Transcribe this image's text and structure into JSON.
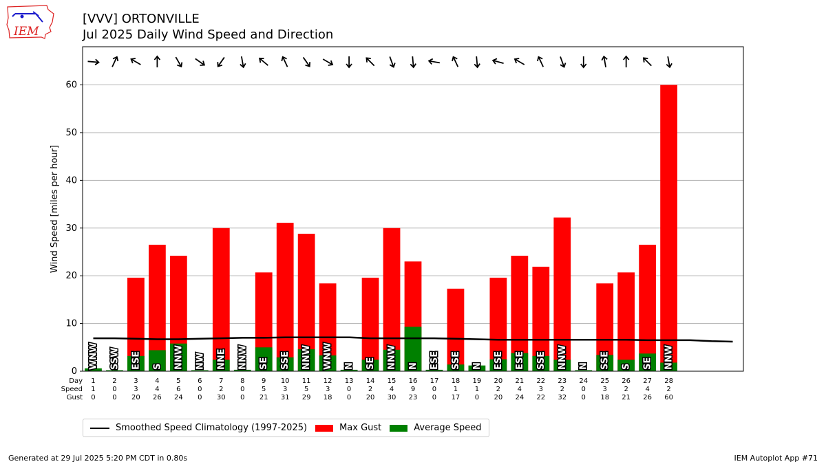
{
  "logo": {
    "text": "IEM"
  },
  "header": {
    "title": "[VVV] ORTONVILLE",
    "subtitle": "Jul 2025 Daily Wind Speed and Direction"
  },
  "colors": {
    "gust": "#ff0000",
    "speed": "#008000",
    "climo": "#000000",
    "grid": "#b0b0b0"
  },
  "chart_data": {
    "type": "bar",
    "ylabel": "Wind Speed [miles per hour]",
    "ylim": [
      0,
      68
    ],
    "xlim": [
      0.5,
      31.5
    ],
    "yticks": [
      0,
      10,
      20,
      30,
      40,
      50,
      60
    ],
    "grid": true,
    "legend_position": "bottom-left",
    "row_labels": [
      "Day",
      "Speed",
      "Gust"
    ],
    "days": [
      1,
      2,
      3,
      4,
      5,
      6,
      7,
      8,
      9,
      10,
      11,
      12,
      13,
      14,
      15,
      16,
      17,
      18,
      19,
      20,
      21,
      22,
      23,
      24,
      25,
      26,
      27,
      28
    ],
    "speed_labels": [
      1,
      0,
      3,
      4,
      6,
      0,
      2,
      0,
      5,
      3,
      5,
      3,
      0,
      2,
      4,
      9,
      0,
      1,
      1,
      2,
      4,
      3,
      2,
      0,
      3,
      2,
      4,
      2
    ],
    "gust_labels": [
      0,
      0,
      20,
      26,
      24,
      0,
      30,
      0,
      21,
      31,
      29,
      18,
      0,
      20,
      30,
      23,
      0,
      17,
      0,
      20,
      24,
      22,
      32,
      0,
      18,
      21,
      26,
      60
    ],
    "series": [
      {
        "name": "Max Gust",
        "values": [
          0,
          0,
          19.6,
          26.5,
          24.2,
          0,
          30.0,
          0,
          20.7,
          31.1,
          28.8,
          18.4,
          0,
          19.6,
          30.0,
          23.0,
          0,
          17.3,
          0,
          19.6,
          24.2,
          21.9,
          32.2,
          0,
          18.4,
          20.7,
          26.5,
          60.0
        ]
      },
      {
        "name": "Average Speed",
        "values": [
          0.6,
          0.2,
          3.2,
          4.4,
          5.8,
          0.2,
          2.4,
          0.3,
          5.0,
          2.9,
          4.6,
          3.3,
          0.3,
          2.4,
          4.5,
          9.3,
          0.3,
          1.4,
          1.2,
          2.5,
          3.8,
          3.2,
          2.4,
          0.2,
          3.4,
          2.4,
          3.7,
          1.8
        ]
      },
      {
        "name": "Smoothed Speed Climatology (1997-2025)",
        "x": [
          1,
          2,
          3,
          4,
          5,
          6,
          7,
          8,
          9,
          10,
          11,
          12,
          13,
          14,
          15,
          16,
          17,
          18,
          19,
          20,
          21,
          22,
          23,
          24,
          25,
          26,
          27,
          28,
          29,
          30,
          31
        ],
        "values": [
          6.9,
          6.9,
          6.8,
          6.7,
          6.7,
          6.8,
          6.9,
          7.0,
          7.0,
          7.1,
          7.1,
          7.1,
          7.1,
          6.9,
          6.9,
          6.9,
          6.9,
          6.8,
          6.7,
          6.6,
          6.6,
          6.6,
          6.6,
          6.6,
          6.6,
          6.6,
          6.5,
          6.5,
          6.5,
          6.3,
          6.2
        ]
      }
    ],
    "direction_labels": [
      "WNW",
      "SSW",
      "ESE",
      "S",
      "NNW",
      "NW",
      "NNE",
      "NNW",
      "SE",
      "SSE",
      "NNW",
      "WNW",
      "N",
      "SE",
      "NNW",
      "N",
      "ESE",
      "SSE",
      "N",
      "ESE",
      "ESE",
      "SSE",
      "NNW",
      "N",
      "SSE",
      "S",
      "SE",
      "NNW"
    ],
    "arrow_angles": [
      5,
      -65,
      -150,
      -90,
      60,
      35,
      125,
      80,
      -140,
      -115,
      55,
      30,
      90,
      -135,
      70,
      85,
      -170,
      -115,
      85,
      -165,
      -150,
      -115,
      70,
      90,
      -100,
      -90,
      -135,
      80
    ]
  },
  "footer": {
    "generated": "Generated at 29 Jul 2025 5:20 PM CDT in 0.80s",
    "app": "IEM Autoplot App #71"
  }
}
